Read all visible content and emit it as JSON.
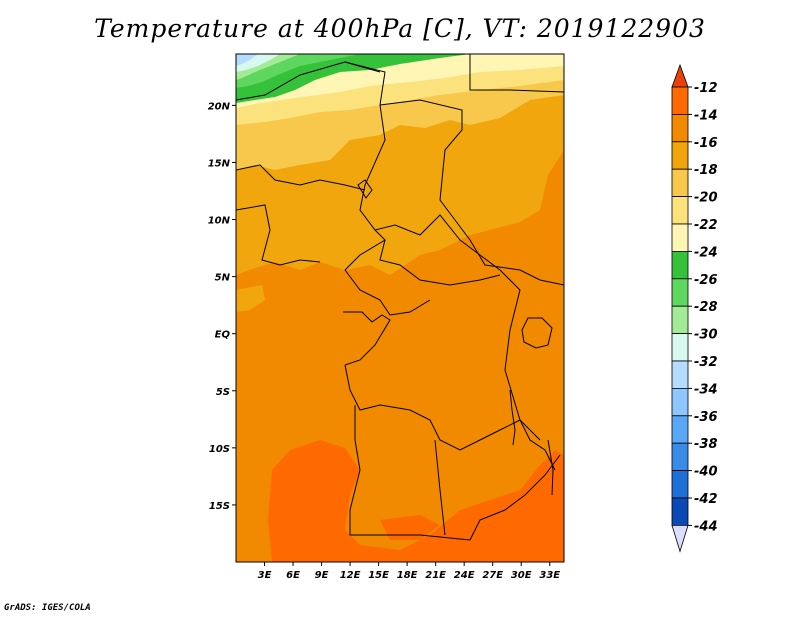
{
  "title": "Temperature at 400hPa [C], VT: 2019122903",
  "credit": "GrADS: IGES/COLA",
  "map": {
    "region": "Central Africa",
    "lon_range": [
      0,
      34.5
    ],
    "lat_range": [
      -20,
      24.5
    ],
    "lat_ticks": [
      {
        "value": 20,
        "label": "20N"
      },
      {
        "value": 15,
        "label": "15N"
      },
      {
        "value": 10,
        "label": "10N"
      },
      {
        "value": 5,
        "label": "5N"
      },
      {
        "value": 0,
        "label": "EQ"
      },
      {
        "value": -5,
        "label": "5S"
      },
      {
        "value": -10,
        "label": "10S"
      },
      {
        "value": -15,
        "label": "15S"
      }
    ],
    "lon_ticks": [
      {
        "value": 3,
        "label": "3E"
      },
      {
        "value": 6,
        "label": "6E"
      },
      {
        "value": 9,
        "label": "9E"
      },
      {
        "value": 12,
        "label": "12E"
      },
      {
        "value": 15,
        "label": "15E"
      },
      {
        "value": 18,
        "label": "18E"
      },
      {
        "value": 21,
        "label": "21E"
      },
      {
        "value": 24,
        "label": "24E"
      },
      {
        "value": 27,
        "label": "27E"
      },
      {
        "value": 30,
        "label": "30E"
      },
      {
        "value": 33,
        "label": "33E"
      }
    ]
  },
  "colorbar": {
    "labels": [
      "-12",
      "-14",
      "-16",
      "-18",
      "-20",
      "-22",
      "-24",
      "-26",
      "-28",
      "-30",
      "-32",
      "-34",
      "-36",
      "-38",
      "-40",
      "-42",
      "-44"
    ],
    "colors": [
      "#ff6a00",
      "#f28a00",
      "#f2a60d",
      "#f7c84b",
      "#fce27d",
      "#fff6b5",
      "#35c13a",
      "#5fd75f",
      "#a3ec97",
      "#d8f8f0",
      "#b5dcff",
      "#8ec6ff",
      "#5aa8f5",
      "#3a8be8",
      "#1e6fd6",
      "#0b49b5",
      "#0a0a6e"
    ],
    "over_color": "#e8410a",
    "under_color": "#dcdcff"
  },
  "fields": {
    "background_level": "-14",
    "regions": [
      {
        "name": "northern-band",
        "level": "-22"
      },
      {
        "name": "sahel-band",
        "level": "-20"
      },
      {
        "name": "sahara-green-band",
        "level": "-24"
      },
      {
        "name": "cold-corner",
        "level": "-30"
      },
      {
        "name": "west-africa-band",
        "level": "-16"
      },
      {
        "name": "southern-warm-pocket",
        "level": "-12"
      }
    ]
  }
}
